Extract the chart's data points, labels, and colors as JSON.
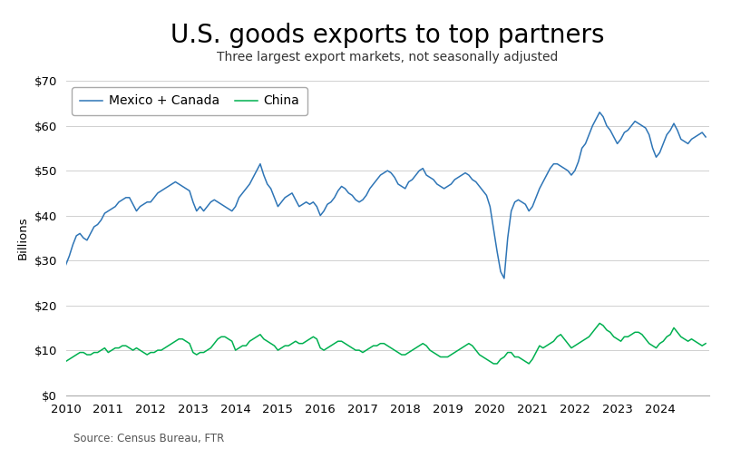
{
  "title": "U.S. goods exports to top partners",
  "subtitle": "Three largest export markets, not seasonally adjusted",
  "source": "Source: Census Bureau, FTR",
  "ylabel": "Billions",
  "ylim": [
    0,
    70
  ],
  "yticks": [
    0,
    10,
    20,
    30,
    40,
    50,
    60,
    70
  ],
  "line1_label": "Mexico + Canada",
  "line1_color": "#2E75B6",
  "line2_label": "China",
  "line2_color": "#00B050",
  "background_color": "#FFFFFF",
  "mexico_canada": [
    29.0,
    31.0,
    33.5,
    35.5,
    36.0,
    35.0,
    34.5,
    36.0,
    37.5,
    38.0,
    39.0,
    40.5,
    41.0,
    41.5,
    42.0,
    43.0,
    43.5,
    44.0,
    44.0,
    42.5,
    41.0,
    42.0,
    42.5,
    43.0,
    43.0,
    44.0,
    45.0,
    45.5,
    46.0,
    46.5,
    47.0,
    47.5,
    47.0,
    46.5,
    46.0,
    45.5,
    43.0,
    41.0,
    42.0,
    41.0,
    42.0,
    43.0,
    43.5,
    43.0,
    42.5,
    42.0,
    41.5,
    41.0,
    42.0,
    44.0,
    45.0,
    46.0,
    47.0,
    48.5,
    50.0,
    51.5,
    49.0,
    47.0,
    46.0,
    44.0,
    42.0,
    43.0,
    44.0,
    44.5,
    45.0,
    43.5,
    42.0,
    42.5,
    43.0,
    42.5,
    43.0,
    42.0,
    40.0,
    41.0,
    42.5,
    43.0,
    44.0,
    45.5,
    46.5,
    46.0,
    45.0,
    44.5,
    43.5,
    43.0,
    43.5,
    44.5,
    46.0,
    47.0,
    48.0,
    49.0,
    49.5,
    50.0,
    49.5,
    48.5,
    47.0,
    46.5,
    46.0,
    47.5,
    48.0,
    49.0,
    50.0,
    50.5,
    49.0,
    48.5,
    48.0,
    47.0,
    46.5,
    46.0,
    46.5,
    47.0,
    48.0,
    48.5,
    49.0,
    49.5,
    49.0,
    48.0,
    47.5,
    46.5,
    45.5,
    44.5,
    42.0,
    37.0,
    32.0,
    27.5,
    26.0,
    35.0,
    41.0,
    43.0,
    43.5,
    43.0,
    42.5,
    41.0,
    42.0,
    44.0,
    46.0,
    47.5,
    49.0,
    50.5,
    51.5,
    51.5,
    51.0,
    50.5,
    50.0,
    49.0,
    50.0,
    52.0,
    55.0,
    56.0,
    58.0,
    60.0,
    61.5,
    63.0,
    62.0,
    60.0,
    59.0,
    57.5,
    56.0,
    57.0,
    58.5,
    59.0,
    60.0,
    61.0,
    60.5,
    60.0,
    59.5,
    58.0,
    55.0,
    53.0,
    54.0,
    56.0,
    58.0,
    59.0,
    60.5,
    59.0,
    57.0,
    56.5,
    56.0,
    57.0,
    57.5,
    58.0,
    58.5,
    57.5
  ],
  "china": [
    7.5,
    8.0,
    8.5,
    9.0,
    9.5,
    9.5,
    9.0,
    9.0,
    9.5,
    9.5,
    10.0,
    10.5,
    9.5,
    10.0,
    10.5,
    10.5,
    11.0,
    11.0,
    10.5,
    10.0,
    10.5,
    10.0,
    9.5,
    9.0,
    9.5,
    9.5,
    10.0,
    10.0,
    10.5,
    11.0,
    11.5,
    12.0,
    12.5,
    12.5,
    12.0,
    11.5,
    9.5,
    9.0,
    9.5,
    9.5,
    10.0,
    10.5,
    11.5,
    12.5,
    13.0,
    13.0,
    12.5,
    12.0,
    10.0,
    10.5,
    11.0,
    11.0,
    12.0,
    12.5,
    13.0,
    13.5,
    12.5,
    12.0,
    11.5,
    11.0,
    10.0,
    10.5,
    11.0,
    11.0,
    11.5,
    12.0,
    11.5,
    11.5,
    12.0,
    12.5,
    13.0,
    12.5,
    10.5,
    10.0,
    10.5,
    11.0,
    11.5,
    12.0,
    12.0,
    11.5,
    11.0,
    10.5,
    10.0,
    10.0,
    9.5,
    10.0,
    10.5,
    11.0,
    11.0,
    11.5,
    11.5,
    11.0,
    10.5,
    10.0,
    9.5,
    9.0,
    9.0,
    9.5,
    10.0,
    10.5,
    11.0,
    11.5,
    11.0,
    10.0,
    9.5,
    9.0,
    8.5,
    8.5,
    8.5,
    9.0,
    9.5,
    10.0,
    10.5,
    11.0,
    11.5,
    11.0,
    10.0,
    9.0,
    8.5,
    8.0,
    7.5,
    7.0,
    7.0,
    8.0,
    8.5,
    9.5,
    9.5,
    8.5,
    8.5,
    8.0,
    7.5,
    7.0,
    8.0,
    9.5,
    11.0,
    10.5,
    11.0,
    11.5,
    12.0,
    13.0,
    13.5,
    12.5,
    11.5,
    10.5,
    11.0,
    11.5,
    12.0,
    12.5,
    13.0,
    14.0,
    15.0,
    16.0,
    15.5,
    14.5,
    14.0,
    13.0,
    12.5,
    12.0,
    13.0,
    13.0,
    13.5,
    14.0,
    14.0,
    13.5,
    12.5,
    11.5,
    11.0,
    10.5,
    11.5,
    12.0,
    13.0,
    13.5,
    15.0,
    14.0,
    13.0,
    12.5,
    12.0,
    12.5,
    12.0,
    11.5,
    11.0,
    11.5
  ]
}
